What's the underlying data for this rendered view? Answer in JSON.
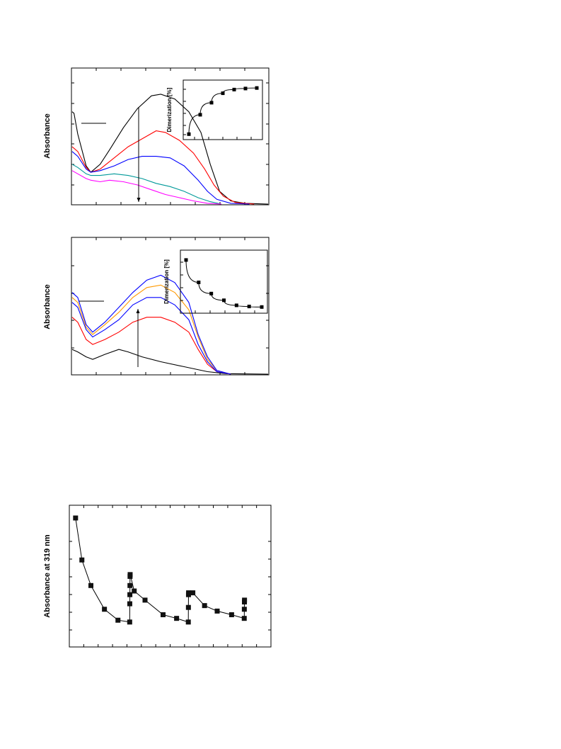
{
  "chart_data": [
    {
      "type": "line",
      "ylabel": "Absorbance",
      "series": [
        {
          "color": "#000000",
          "points": [
            [
              0,
              0.58
            ],
            [
              2,
              0.57
            ],
            [
              6,
              0.44
            ],
            [
              15,
              0.24
            ],
            [
              20,
              0.2
            ],
            [
              30,
              0.25
            ],
            [
              40,
              0.34
            ],
            [
              55,
              0.48
            ],
            [
              70,
              0.6
            ],
            [
              85,
              0.68
            ],
            [
              95,
              0.69
            ],
            [
              110,
              0.66
            ],
            [
              125,
              0.58
            ],
            [
              138,
              0.45
            ],
            [
              148,
              0.25
            ],
            [
              158,
              0.08
            ],
            [
              170,
              0.02
            ],
            [
              185,
              0.005
            ],
            [
              210,
              0.0
            ]
          ]
        },
        {
          "color": "#ff0000",
          "points": [
            [
              0,
              0.36
            ],
            [
              6,
              0.33
            ],
            [
              15,
              0.23
            ],
            [
              20,
              0.2
            ],
            [
              30,
              0.22
            ],
            [
              45,
              0.29
            ],
            [
              60,
              0.36
            ],
            [
              75,
              0.41
            ],
            [
              90,
              0.46
            ],
            [
              100,
              0.45
            ],
            [
              115,
              0.4
            ],
            [
              130,
              0.32
            ],
            [
              142,
              0.22
            ],
            [
              152,
              0.12
            ],
            [
              162,
              0.05
            ],
            [
              175,
              0.01
            ],
            [
              195,
              0.0
            ]
          ]
        },
        {
          "color": "#0000ff",
          "points": [
            [
              0,
              0.33
            ],
            [
              6,
              0.3
            ],
            [
              15,
              0.22
            ],
            [
              20,
              0.2
            ],
            [
              30,
              0.21
            ],
            [
              45,
              0.24
            ],
            [
              60,
              0.28
            ],
            [
              75,
              0.3
            ],
            [
              90,
              0.3
            ],
            [
              105,
              0.29
            ],
            [
              120,
              0.24
            ],
            [
              135,
              0.15
            ],
            [
              145,
              0.08
            ],
            [
              155,
              0.03
            ],
            [
              170,
              0.005
            ],
            [
              190,
              0.0
            ]
          ]
        },
        {
          "color": "#009999",
          "points": [
            [
              0,
              0.25
            ],
            [
              6,
              0.23
            ],
            [
              15,
              0.19
            ],
            [
              20,
              0.18
            ],
            [
              30,
              0.18
            ],
            [
              45,
              0.19
            ],
            [
              60,
              0.18
            ],
            [
              75,
              0.16
            ],
            [
              90,
              0.13
            ],
            [
              105,
              0.11
            ],
            [
              120,
              0.08
            ],
            [
              135,
              0.04
            ],
            [
              148,
              0.015
            ],
            [
              160,
              0.0
            ]
          ]
        },
        {
          "color": "#ff00ff",
          "points": [
            [
              0,
              0.21
            ],
            [
              6,
              0.19
            ],
            [
              15,
              0.16
            ],
            [
              20,
              0.15
            ],
            [
              30,
              0.14
            ],
            [
              40,
              0.15
            ],
            [
              55,
              0.14
            ],
            [
              70,
              0.12
            ],
            [
              85,
              0.09
            ],
            [
              100,
              0.06
            ],
            [
              115,
              0.04
            ],
            [
              130,
              0.02
            ],
            [
              145,
              0.005
            ],
            [
              160,
              0.0
            ]
          ]
        }
      ],
      "inset": {
        "type": "scatter",
        "ylabel": "Dimerization  [%]",
        "x": [
          0,
          1,
          2,
          3,
          4,
          5,
          6
        ],
        "values": [
          5,
          42,
          65,
          83,
          90,
          92,
          93
        ]
      }
    },
    {
      "type": "line",
      "ylabel": "Absorbance",
      "series": [
        {
          "color": "#000000",
          "points": [
            [
              0,
              0.1
            ],
            [
              6,
              0.09
            ],
            [
              15,
              0.07
            ],
            [
              22,
              0.06
            ],
            [
              35,
              0.08
            ],
            [
              50,
              0.1
            ],
            [
              60,
              0.09
            ],
            [
              75,
              0.07
            ],
            [
              95,
              0.05
            ],
            [
              120,
              0.03
            ],
            [
              145,
              0.01
            ],
            [
              165,
              0.002
            ],
            [
              210,
              0.0
            ]
          ]
        },
        {
          "color": "#ff0000",
          "points": [
            [
              0,
              0.23
            ],
            [
              6,
              0.21
            ],
            [
              15,
              0.14
            ],
            [
              22,
              0.12
            ],
            [
              35,
              0.14
            ],
            [
              50,
              0.17
            ],
            [
              65,
              0.21
            ],
            [
              80,
              0.23
            ],
            [
              95,
              0.23
            ],
            [
              110,
              0.21
            ],
            [
              125,
              0.17
            ],
            [
              135,
              0.1
            ],
            [
              145,
              0.04
            ],
            [
              155,
              0.01
            ],
            [
              170,
              0.0
            ]
          ]
        },
        {
          "color": "#0000ff",
          "points": [
            [
              0,
              0.29
            ],
            [
              6,
              0.27
            ],
            [
              15,
              0.18
            ],
            [
              22,
              0.15
            ],
            [
              35,
              0.18
            ],
            [
              50,
              0.22
            ],
            [
              65,
              0.28
            ],
            [
              80,
              0.31
            ],
            [
              95,
              0.31
            ],
            [
              110,
              0.28
            ],
            [
              125,
              0.22
            ],
            [
              135,
              0.12
            ],
            [
              145,
              0.05
            ],
            [
              155,
              0.01
            ],
            [
              170,
              0.0
            ]
          ]
        },
        {
          "color": "#ff9900",
          "points": [
            [
              0,
              0.31
            ],
            [
              6,
              0.29
            ],
            [
              15,
              0.19
            ],
            [
              22,
              0.16
            ],
            [
              35,
              0.2
            ],
            [
              50,
              0.25
            ],
            [
              65,
              0.31
            ],
            [
              80,
              0.35
            ],
            [
              95,
              0.36
            ],
            [
              110,
              0.33
            ],
            [
              125,
              0.26
            ],
            [
              135,
              0.15
            ],
            [
              145,
              0.06
            ],
            [
              155,
              0.015
            ],
            [
              170,
              0.0
            ]
          ]
        },
        {
          "color": "#0000ff",
          "points": [
            [
              0,
              0.33
            ],
            [
              6,
              0.31
            ],
            [
              15,
              0.2
            ],
            [
              22,
              0.17
            ],
            [
              35,
              0.21
            ],
            [
              50,
              0.27
            ],
            [
              65,
              0.33
            ],
            [
              80,
              0.38
            ],
            [
              95,
              0.4
            ],
            [
              110,
              0.37
            ],
            [
              125,
              0.29
            ],
            [
              135,
              0.16
            ],
            [
              145,
              0.07
            ],
            [
              155,
              0.015
            ],
            [
              170,
              0.0
            ]
          ]
        }
      ],
      "inset": {
        "type": "scatter",
        "ylabel": "Dimerization  [%]",
        "x": [
          0,
          1,
          2,
          3,
          4,
          5,
          6
        ],
        "values": [
          90,
          50,
          30,
          18,
          9,
          7,
          6
        ]
      }
    },
    {
      "type": "scatter",
      "ylabel": "Absorbance at 319 nm",
      "x": [
        0.3,
        1,
        2,
        3.5,
        5,
        6.3,
        6.31,
        6.32,
        6.33,
        6.34,
        6.35,
        6.8,
        8,
        10,
        11.5,
        12.8,
        12.81,
        12.82,
        12.83,
        13.3,
        14.6,
        16,
        17.6,
        19,
        19.01,
        19.02,
        19.03
      ],
      "values": [
        0.66,
        0.43,
        0.29,
        0.16,
        0.1,
        0.09,
        0.19,
        0.24,
        0.29,
        0.34,
        0.35,
        0.26,
        0.21,
        0.13,
        0.11,
        0.09,
        0.17,
        0.24,
        0.25,
        0.25,
        0.18,
        0.15,
        0.13,
        0.11,
        0.16,
        0.2,
        0.21
      ]
    }
  ]
}
